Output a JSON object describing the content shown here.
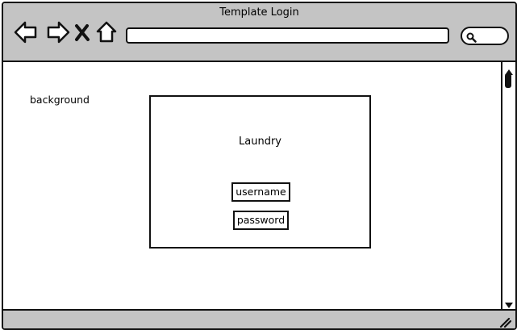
{
  "window": {
    "title": "Template Login"
  },
  "toolbar": {
    "back_icon": "back-arrow-icon",
    "forward_icon": "forward-arrow-icon",
    "stop_icon": "close-x-icon",
    "home_icon": "home-icon",
    "search_icon": "search-icon",
    "address_value": ""
  },
  "content": {
    "background_label": "background",
    "login_panel": {
      "title": "Laundry",
      "username_label": "username",
      "password_label": "password"
    }
  },
  "colors": {
    "chrome": "#c4c4c4",
    "outline": "#111111",
    "canvas": "#ffffff"
  }
}
